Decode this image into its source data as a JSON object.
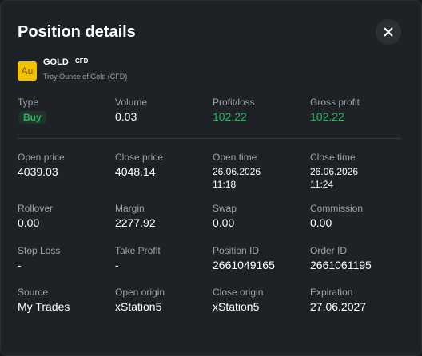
{
  "header": {
    "title": "Position details"
  },
  "instrument": {
    "icon": "Au",
    "symbol": "GOLD",
    "badge": "CFD",
    "description": "Troy Ounce of Gold (CFD)"
  },
  "fields": [
    [
      {
        "label": "Type",
        "value": "Buy"
      },
      {
        "label": "Volume",
        "value": "0.03"
      },
      {
        "label": "Profit/loss",
        "value": "102.22"
      },
      {
        "label": "Gross profit",
        "value": "102.22"
      }
    ],
    [
      {
        "label": "Open price",
        "value": "4039.03"
      },
      {
        "label": "Close price",
        "value": "4048.14"
      },
      {
        "label": "Open time",
        "value": [
          "26.06.2026",
          "11:18"
        ]
      },
      {
        "label": "Close time",
        "value": [
          "26.06.2026",
          "11:24"
        ]
      }
    ],
    [
      {
        "label": "Rollover",
        "value": "0.00"
      },
      {
        "label": "Margin",
        "value": "2277.92"
      },
      {
        "label": "Swap",
        "value": "0.00"
      },
      {
        "label": "Commission",
        "value": "0.00"
      }
    ],
    [
      {
        "label": "Stop Loss",
        "value": "-"
      },
      {
        "label": "Take Profit",
        "value": "-"
      },
      {
        "label": "Position ID",
        "value": "2661049165"
      },
      {
        "label": "Order ID",
        "value": "2661061195"
      }
    ],
    [
      {
        "label": "Source",
        "value": "My Trades"
      },
      {
        "label": "Open origin",
        "value": "xStation5"
      },
      {
        "label": "Close origin",
        "value": "xStation5"
      },
      {
        "label": "Expiration",
        "value": "27.06.2027"
      }
    ]
  ]
}
